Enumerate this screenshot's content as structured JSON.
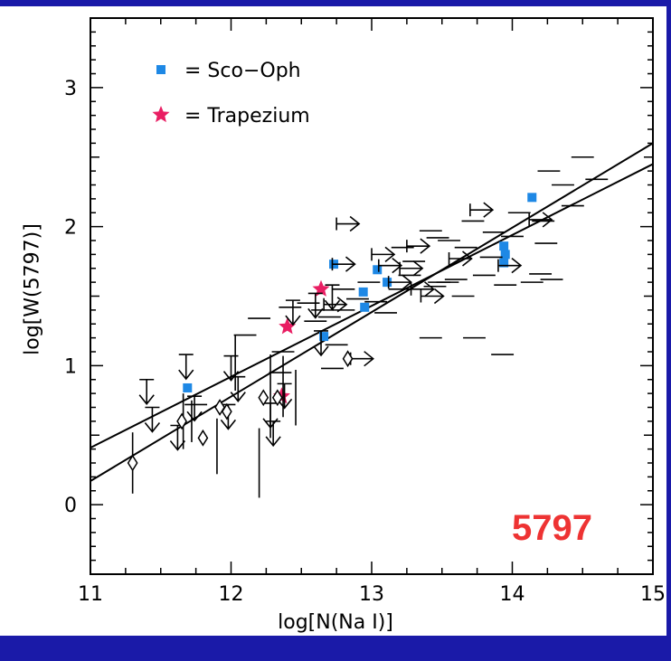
{
  "chart_data": {
    "type": "scatter",
    "title": "",
    "xlabel": "log[N(Na I)]",
    "ylabel": "log[W(5797)]",
    "annotation": "5797",
    "xlim": [
      11,
      15
    ],
    "ylim": [
      -0.5,
      3.5
    ],
    "xticks": [
      "11",
      "12",
      "13",
      "14",
      "15"
    ],
    "yticks": [
      "0",
      "1",
      "2",
      "3"
    ],
    "legend": {
      "position": "top-left",
      "entries": [
        {
          "marker": "square",
          "label": "= Sco−Oph",
          "color": "#1e88e5"
        },
        {
          "marker": "star",
          "label": "= Trapezium",
          "color": "#e91e63"
        }
      ]
    },
    "colors": {
      "sco_oph": "#1e88e5",
      "trapezium": "#e91e63",
      "frame": "#1a1aa8",
      "annotation": "#ee3333"
    },
    "fit_lines": [
      {
        "x": [
          11.0,
          15.0
        ],
        "y": [
          0.41,
          2.45
        ]
      },
      {
        "x": [
          11.0,
          15.0
        ],
        "y": [
          0.17,
          2.6
        ]
      }
    ],
    "series": [
      {
        "name": "Sco−Oph",
        "marker": "square",
        "points": [
          [
            11.69,
            0.84
          ],
          [
            12.66,
            1.21
          ],
          [
            12.73,
            1.73
          ],
          [
            12.94,
            1.53
          ],
          [
            12.95,
            1.42
          ],
          [
            13.04,
            1.69
          ],
          [
            13.11,
            1.6
          ],
          [
            13.94,
            1.86
          ],
          [
            13.95,
            1.8
          ],
          [
            13.94,
            1.74
          ],
          [
            14.14,
            2.21
          ]
        ]
      },
      {
        "name": "Trapezium",
        "marker": "star",
        "points": [
          [
            12.36,
            0.78
          ],
          [
            12.4,
            1.28
          ],
          [
            12.64,
            1.55
          ]
        ]
      },
      {
        "marker": "errorbar",
        "points": [
          [
            12.1,
            1.22,
            0.0,
            0.08
          ],
          [
            12.2,
            1.34,
            0.0,
            0.08
          ],
          [
            12.37,
            1.1,
            0.0,
            0.08
          ],
          [
            12.42,
            1.42,
            0.0,
            0.08
          ],
          [
            12.55,
            1.45,
            0.0,
            0.08
          ],
          [
            12.6,
            1.32,
            0.0,
            0.08
          ],
          [
            12.7,
            1.35,
            0.0,
            0.08
          ],
          [
            12.75,
            1.15,
            0.0,
            0.08
          ],
          [
            12.8,
            1.4,
            0.0,
            0.08
          ],
          [
            12.9,
            1.48,
            0.0,
            0.08
          ],
          [
            13.03,
            1.46,
            0.0,
            0.08
          ],
          [
            13.1,
            1.38,
            0.0,
            0.08
          ],
          [
            13.2,
            1.55,
            0.0,
            0.08
          ],
          [
            13.27,
            1.65,
            0.0,
            0.08
          ],
          [
            13.42,
            1.2,
            0.0,
            0.08
          ],
          [
            13.48,
            1.6,
            0.0,
            0.08
          ],
          [
            13.54,
            1.6,
            0.0,
            0.08
          ],
          [
            13.6,
            1.62,
            0.0,
            0.08
          ],
          [
            13.73,
            1.2,
            0.0,
            0.08
          ],
          [
            13.8,
            1.65,
            0.0,
            0.08
          ],
          [
            13.93,
            1.08,
            0.0,
            0.08
          ],
          [
            13.95,
            1.58,
            0.0,
            0.08
          ],
          [
            13.42,
            1.97,
            0.0,
            0.08
          ],
          [
            13.47,
            1.92,
            0.0,
            0.08
          ],
          [
            13.55,
            1.9,
            0.0,
            0.08
          ],
          [
            13.72,
            2.04,
            0.0,
            0.08
          ],
          [
            13.67,
            1.85,
            0.0,
            0.08
          ],
          [
            13.87,
            1.96,
            0.0,
            0.08
          ],
          [
            14.0,
            1.93,
            0.0,
            0.08
          ],
          [
            14.05,
            2.1,
            0.0,
            0.08
          ],
          [
            14.14,
            1.6,
            0.0,
            0.08
          ],
          [
            14.2,
            1.66,
            0.0,
            0.08
          ],
          [
            14.22,
            2.04,
            0.0,
            0.08
          ],
          [
            14.24,
            1.88,
            0.0,
            0.08
          ],
          [
            14.26,
            2.4,
            0.0,
            0.08
          ],
          [
            14.36,
            2.3,
            0.0,
            0.08
          ],
          [
            14.43,
            2.15,
            0.0,
            0.08
          ],
          [
            14.5,
            2.5,
            0.0,
            0.08
          ],
          [
            14.6,
            2.34,
            0.0,
            0.08
          ],
          [
            13.45,
            1.57,
            0.0,
            0.08
          ],
          [
            13.22,
            1.85,
            0.0,
            0.08
          ],
          [
            13.3,
            1.75,
            0.0,
            0.08
          ],
          [
            12.98,
            1.6,
            0.0,
            0.08
          ],
          [
            12.8,
            1.55,
            0.0,
            0.08
          ],
          [
            12.65,
            1.4,
            0.0,
            0.08
          ],
          [
            14.28,
            1.62,
            0.0,
            0.08
          ],
          [
            13.65,
            1.5,
            0.0,
            0.08
          ],
          [
            13.85,
            1.78,
            0.0,
            0.08
          ],
          [
            12.72,
            0.98,
            0.0,
            0.08
          ],
          [
            12.35,
            0.95,
            0.0,
            0.08
          ],
          [
            11.75,
            0.72,
            0.0,
            0.08
          ],
          [
            12.46,
            0.77,
            0.2,
            0.0
          ],
          [
            12.28,
            0.78,
            0.3,
            0.0
          ],
          [
            12.2,
            0.3,
            0.25,
            0.0
          ],
          [
            12.37,
            0.85,
            0.22,
            0.0
          ],
          [
            12.03,
            1.02,
            0.2,
            0.0
          ],
          [
            11.72,
            0.6,
            0.15,
            0.0
          ],
          [
            11.3,
            0.3,
            0.22,
            0.0
          ],
          [
            11.66,
            0.6,
            0.2,
            0.0
          ],
          [
            11.9,
            0.42,
            0.2,
            0.0
          ]
        ]
      },
      {
        "marker": "upper-limit",
        "points": [
          [
            11.4,
            0.9
          ],
          [
            11.44,
            0.7
          ],
          [
            11.62,
            0.57
          ],
          [
            11.68,
            1.08
          ],
          [
            11.74,
            0.78
          ],
          [
            11.98,
            0.72
          ],
          [
            12.0,
            1.07
          ],
          [
            12.05,
            0.92
          ],
          [
            12.28,
            0.73
          ],
          [
            12.3,
            0.6
          ],
          [
            12.38,
            0.87
          ],
          [
            12.44,
            1.47
          ],
          [
            12.6,
            1.52
          ],
          [
            12.64,
            1.25
          ],
          [
            12.72,
            1.58
          ]
        ]
      },
      {
        "marker": "lower-limit",
        "points": [
          [
            12.66,
            1.44
          ],
          [
            12.72,
            1.73
          ],
          [
            12.75,
            2.02
          ],
          [
            13.0,
            1.8
          ],
          [
            13.05,
            1.72
          ],
          [
            13.12,
            1.6
          ],
          [
            13.2,
            1.7
          ],
          [
            13.28,
            1.55
          ],
          [
            13.35,
            1.5
          ],
          [
            13.55,
            1.77
          ],
          [
            13.7,
            2.12
          ],
          [
            12.85,
            1.05
          ],
          [
            14.12,
            2.05
          ],
          [
            13.25,
            1.86
          ],
          [
            13.9,
            1.72
          ]
        ]
      },
      {
        "marker": "open-diamond",
        "points": [
          [
            11.3,
            0.3
          ],
          [
            11.65,
            0.6
          ],
          [
            11.8,
            0.48
          ],
          [
            11.92,
            0.7
          ],
          [
            11.97,
            0.67
          ],
          [
            12.23,
            0.77
          ],
          [
            12.33,
            0.77
          ],
          [
            12.83,
            1.05
          ]
        ]
      }
    ]
  }
}
